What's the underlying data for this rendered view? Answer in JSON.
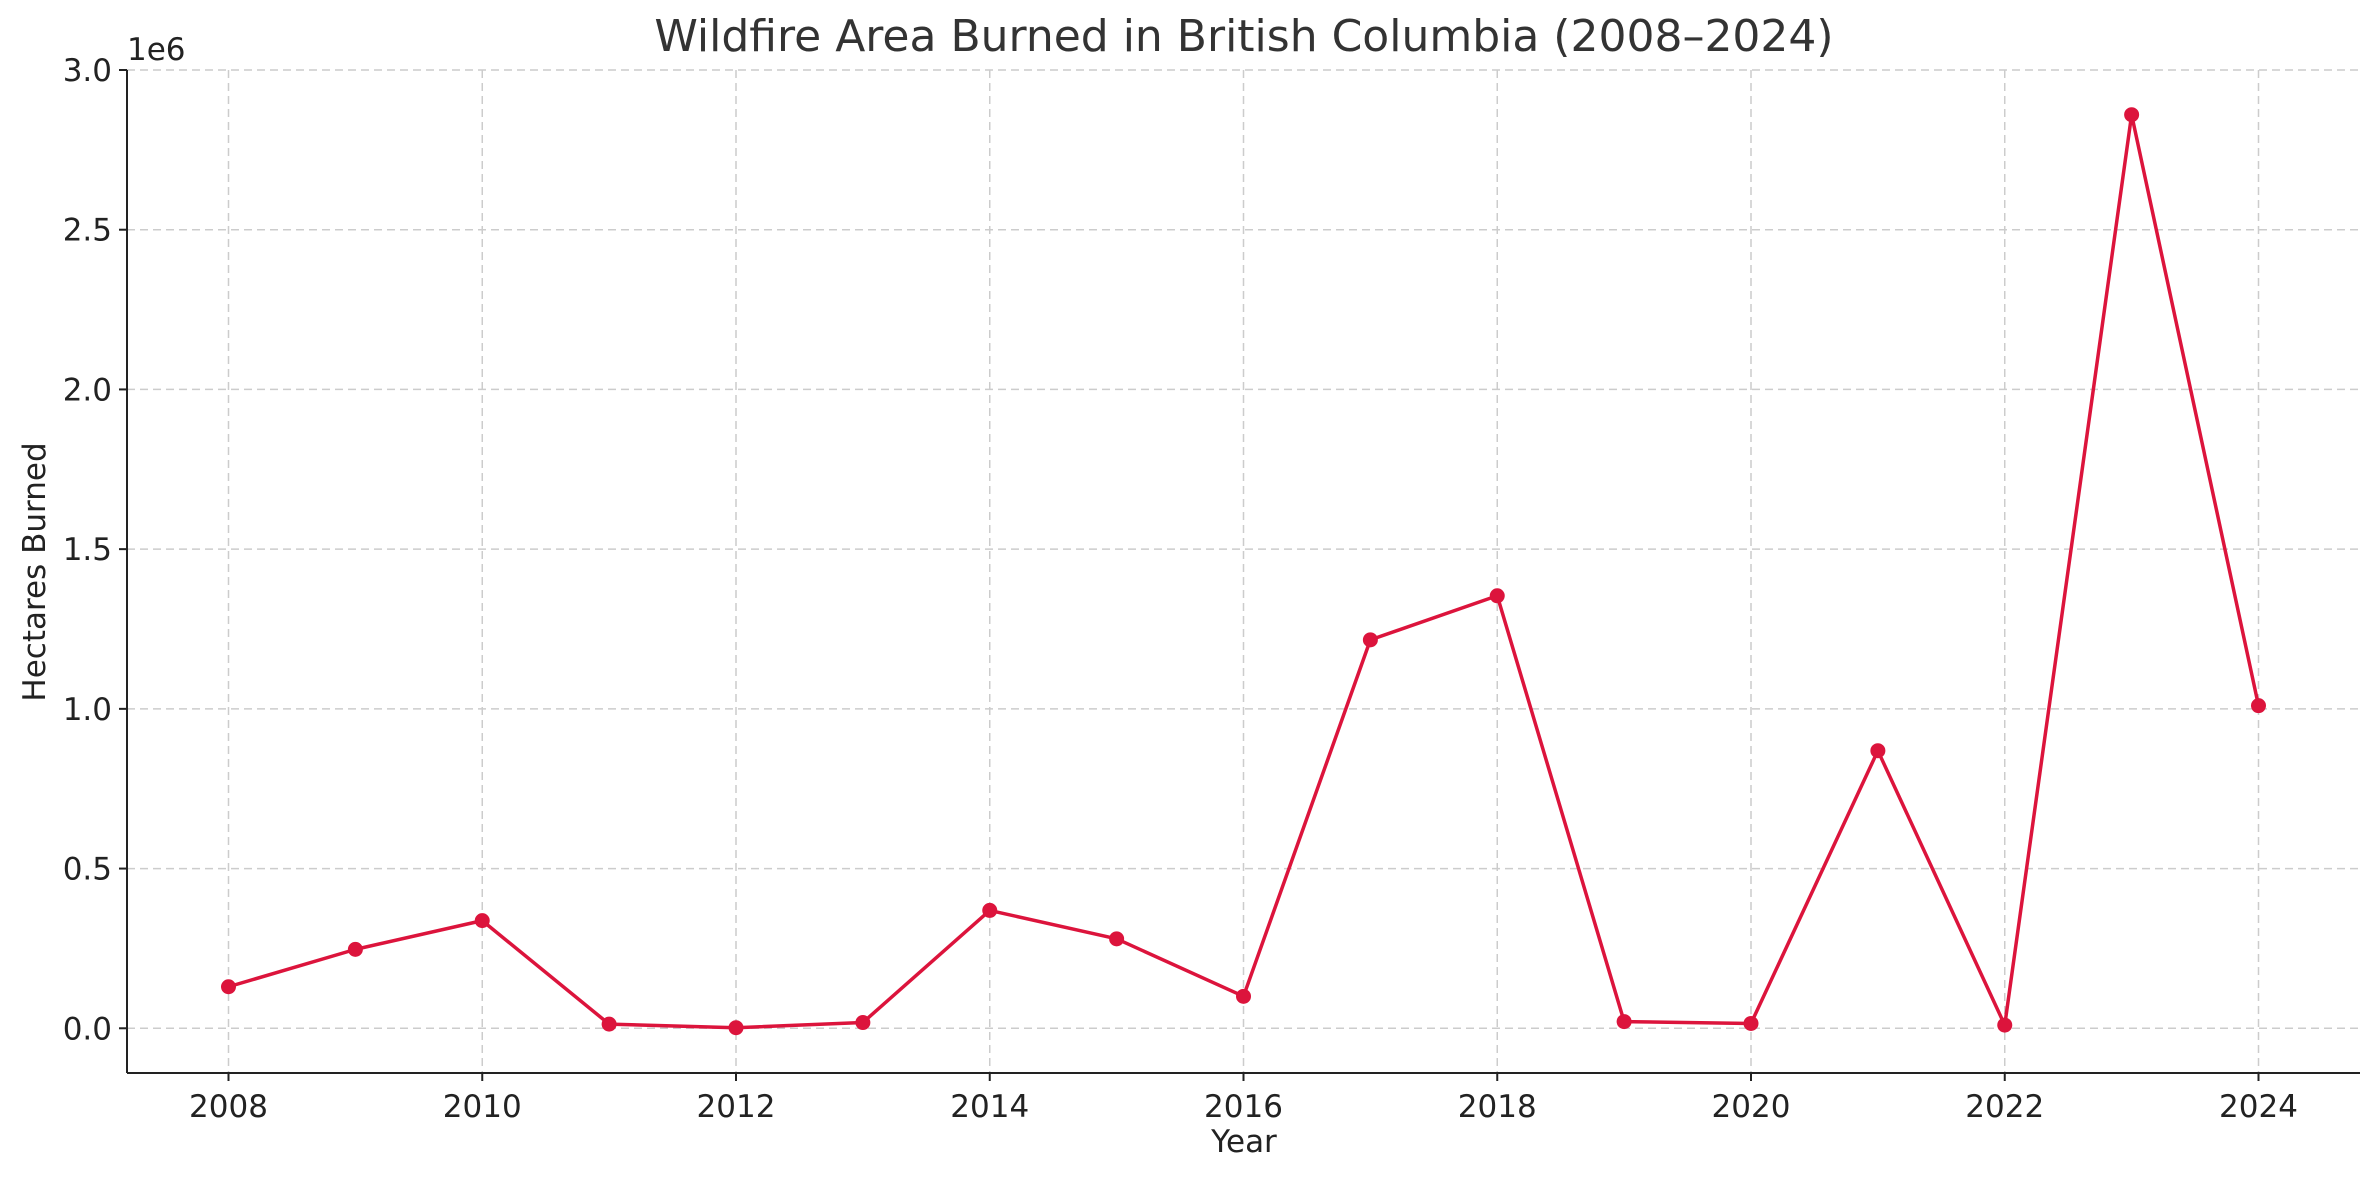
{
  "chart_data": {
    "type": "line",
    "title": "Wildfire Area Burned in British Columbia (2008–2024)",
    "xlabel": "Year",
    "ylabel": "Hectares Burned",
    "y_offset_label": "1e6",
    "x": [
      2008,
      2009,
      2010,
      2011,
      2012,
      2013,
      2014,
      2015,
      2016,
      2017,
      2018,
      2019,
      2020,
      2021,
      2022,
      2023,
      2024
    ],
    "series": [
      {
        "values": [
          130000,
          247000,
          337000,
          13000,
          1700,
          18000,
          369000,
          280000,
          100000,
          1216000,
          1354000,
          21000,
          15000,
          869000,
          10000,
          2860000,
          1010000
        ],
        "color": "#dc143c"
      }
    ],
    "x_ticks": [
      "2008",
      "2010",
      "2012",
      "2014",
      "2016",
      "2018",
      "2020",
      "2022",
      "2024"
    ],
    "y_ticks": [
      "0.0",
      "0.5",
      "1.0",
      "1.5",
      "2.0",
      "2.5",
      "3.0"
    ],
    "xlim": [
      2007.2,
      2024.8
    ],
    "ylim": [
      -140000,
      3000000
    ],
    "grid": true,
    "marker": "circle"
  }
}
